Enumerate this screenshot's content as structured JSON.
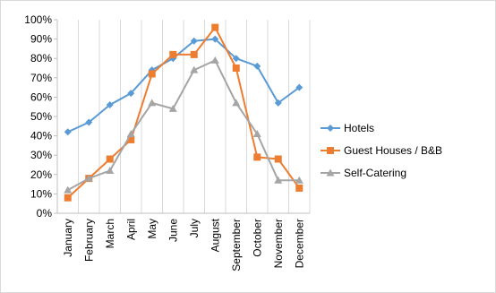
{
  "chart_data": {
    "type": "line",
    "categories": [
      "January",
      "February",
      "March",
      "April",
      "May",
      "June",
      "July",
      "August",
      "September",
      "October",
      "November",
      "December"
    ],
    "series": [
      {
        "name": "Hotels",
        "color": "#5b9bd5",
        "marker": "diamond",
        "values": [
          42,
          47,
          56,
          62,
          74,
          80,
          89,
          90,
          80,
          76,
          57,
          65
        ]
      },
      {
        "name": "Guest Houses / B&B",
        "color": "#ed7d31",
        "marker": "square",
        "values": [
          8,
          18,
          28,
          38,
          72,
          82,
          82,
          96,
          75,
          29,
          28,
          13
        ]
      },
      {
        "name": "Self-Catering",
        "color": "#a5a5a5",
        "marker": "triangle",
        "values": [
          12,
          18,
          22,
          41,
          57,
          54,
          74,
          79,
          57,
          41,
          17,
          17
        ]
      }
    ],
    "yticks": [
      "0%",
      "10%",
      "20%",
      "30%",
      "40%",
      "50%",
      "60%",
      "70%",
      "80%",
      "90%",
      "100%"
    ],
    "ylim": [
      0,
      100
    ],
    "grid": "vertical",
    "legend_position": "right"
  }
}
